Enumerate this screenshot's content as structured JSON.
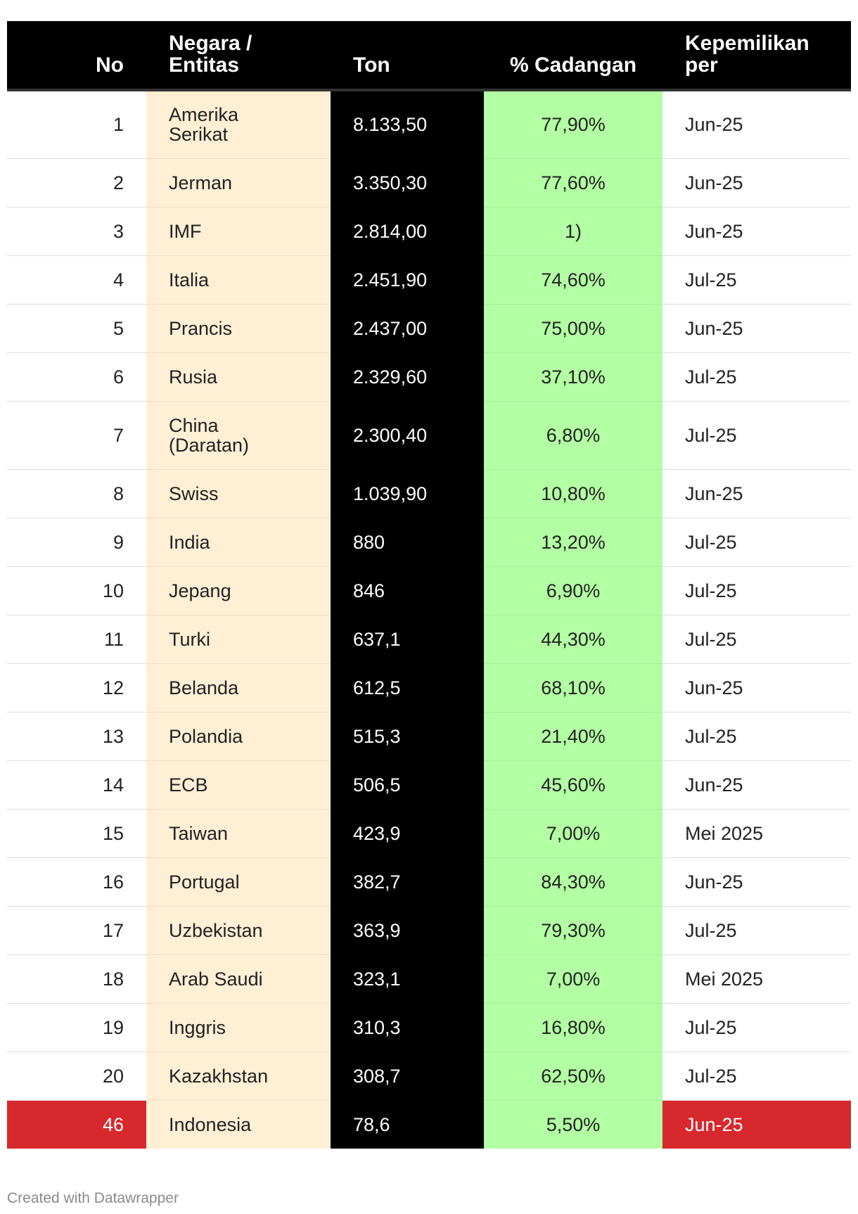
{
  "chart_data": {
    "type": "table",
    "columns": [
      "No",
      "Negara / Entitas",
      "Ton",
      "% Cadangan",
      "Kepemilikan per"
    ],
    "rows": [
      {
        "no": "1",
        "negara": "Amerika Serikat",
        "ton": "8.133,50",
        "cadangan": "77,90%",
        "per": "Jun-25"
      },
      {
        "no": "2",
        "negara": "Jerman",
        "ton": "3.350,30",
        "cadangan": "77,60%",
        "per": "Jun-25"
      },
      {
        "no": "3",
        "negara": "IMF",
        "ton": "2.814,00",
        "cadangan": "1)",
        "per": "Jun-25"
      },
      {
        "no": "4",
        "negara": "Italia",
        "ton": "2.451,90",
        "cadangan": "74,60%",
        "per": "Jul-25"
      },
      {
        "no": "5",
        "negara": "Prancis",
        "ton": "2.437,00",
        "cadangan": "75,00%",
        "per": "Jun-25"
      },
      {
        "no": "6",
        "negara": "Rusia",
        "ton": "2.329,60",
        "cadangan": "37,10%",
        "per": "Jul-25"
      },
      {
        "no": "7",
        "negara": "China (Daratan)",
        "ton": "2.300,40",
        "cadangan": "6,80%",
        "per": "Jul-25"
      },
      {
        "no": "8",
        "negara": "Swiss",
        "ton": "1.039,90",
        "cadangan": "10,80%",
        "per": "Jun-25"
      },
      {
        "no": "9",
        "negara": "India",
        "ton": "880",
        "cadangan": "13,20%",
        "per": "Jul-25"
      },
      {
        "no": "10",
        "negara": "Jepang",
        "ton": "846",
        "cadangan": "6,90%",
        "per": "Jul-25"
      },
      {
        "no": "11",
        "negara": "Turki",
        "ton": "637,1",
        "cadangan": "44,30%",
        "per": "Jul-25"
      },
      {
        "no": "12",
        "negara": "Belanda",
        "ton": "612,5",
        "cadangan": "68,10%",
        "per": "Jun-25"
      },
      {
        "no": "13",
        "negara": "Polandia",
        "ton": "515,3",
        "cadangan": "21,40%",
        "per": "Jul-25"
      },
      {
        "no": "14",
        "negara": "ECB",
        "ton": "506,5",
        "cadangan": "45,60%",
        "per": "Jun-25"
      },
      {
        "no": "15",
        "negara": "Taiwan",
        "ton": "423,9",
        "cadangan": "7,00%",
        "per": "Mei 2025"
      },
      {
        "no": "16",
        "negara": "Portugal",
        "ton": "382,7",
        "cadangan": "84,30%",
        "per": "Jun-25"
      },
      {
        "no": "17",
        "negara": "Uzbekistan",
        "ton": "363,9",
        "cadangan": "79,30%",
        "per": "Jul-25"
      },
      {
        "no": "18",
        "negara": "Arab Saudi",
        "ton": "323,1",
        "cadangan": "7,00%",
        "per": "Mei 2025"
      },
      {
        "no": "19",
        "negara": "Inggris",
        "ton": "310,3",
        "cadangan": "16,80%",
        "per": "Jul-25"
      },
      {
        "no": "20",
        "negara": "Kazakhstan",
        "ton": "308,7",
        "cadangan": "62,50%",
        "per": "Jul-25"
      },
      {
        "no": "46",
        "negara": "Indonesia",
        "ton": "78,6",
        "cadangan": "5,50%",
        "per": "Jun-25",
        "highlight": true
      }
    ],
    "colors": {
      "header_bg": "#000000",
      "negara_bg": "#ffefd5",
      "ton_bg": "#000000",
      "cadangan_bg": "#b3ffa3",
      "highlight": "#d7282d"
    }
  },
  "footer": "Created with Datawrapper"
}
